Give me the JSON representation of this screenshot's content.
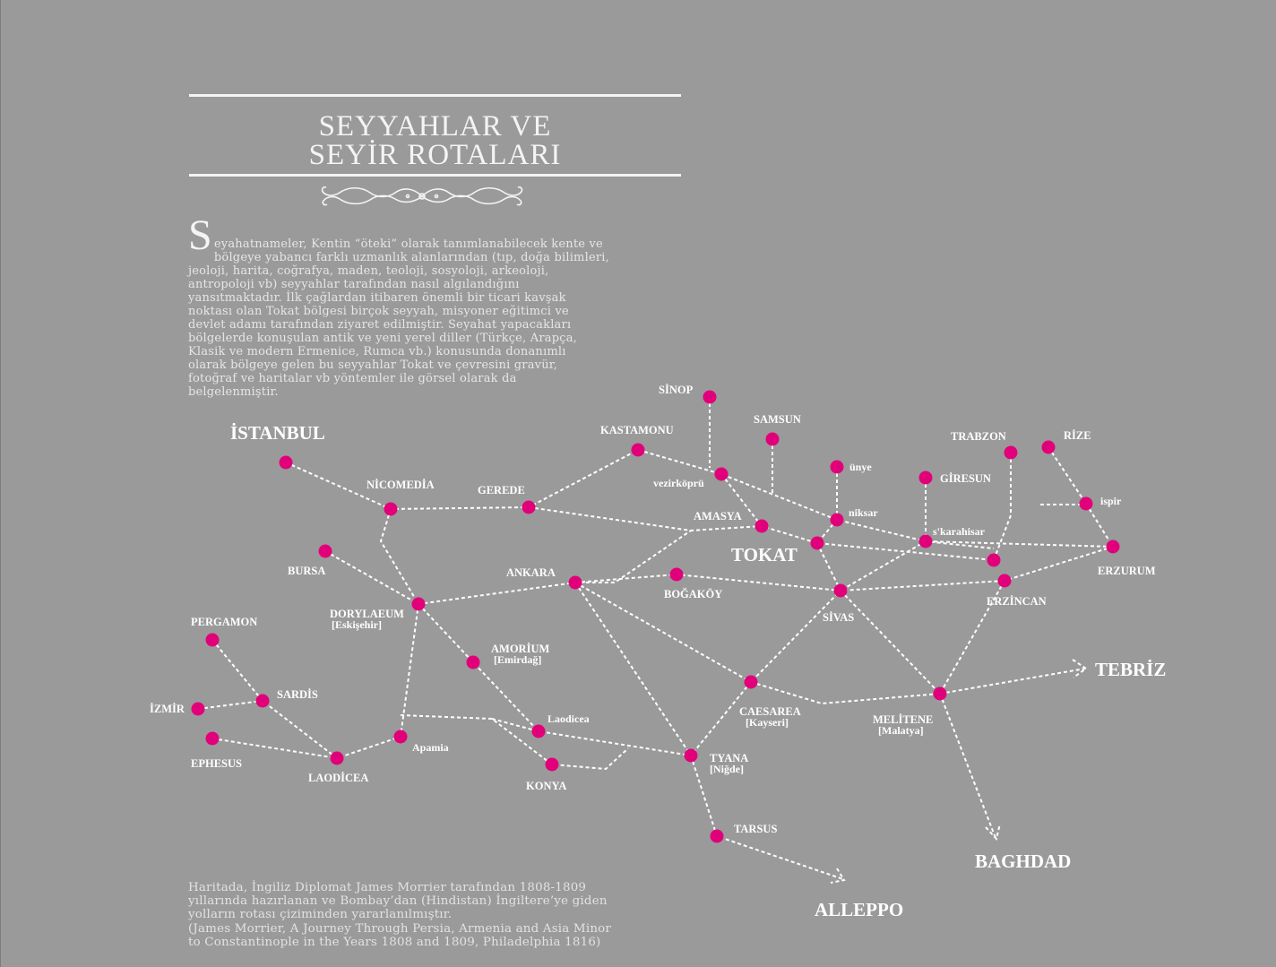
{
  "title": {
    "line1": "SEYYAHLAR VE",
    "line2": "SEYİR ROTALARI"
  },
  "ornament_icon": "scroll-flourish-icon",
  "intro": {
    "dropcap": "S",
    "lines": [
      "eyahatnameler, Kentin “öteki” olarak tanımlanabilecek kente ve",
      "bölgeye yabancı farklı uzmanlık alanlarından (tıp, doğa bilimleri,",
      "jeoloji, harita, coğrafya, maden, teoloji, sosyoloji, arkeoloji,",
      "antropoloji vb) seyyahlar tarafından nasıl algılandığını",
      "yansıtmaktadır. İlk çağlardan itibaren önemli bir ticari kavşak",
      "noktası olan Tokat bölgesi birçok seyyah, misyoner eğitimci ve",
      "devlet adamı tarafından ziyaret edilmiştir. Seyahat yapacakları",
      "bölgelerde konuşulan antik ve yeni yerel diller (Türkçe, Arapça,",
      "Klasik ve modern Ermenice, Rumca vb.) konusunda donanımlı",
      "olarak bölgeye gelen bu seyyahlar Tokat ve çevresini gravür,",
      "fotoğraf ve haritalar vb yöntemler ile görsel olarak da",
      "belgelenmiştir."
    ]
  },
  "footnote": {
    "lines": [
      "Haritada, İngiliz Diplomat James Morrier tarafından 1808-1809",
      "yıllarında hazırlanan ve Bombay’dan (Hindistan) İngiltere’ye giden",
      "yolların rotası çiziminden yararlanılmıştır.",
      "(James Morrier, A Journey Through  Persia, Armenia and Asia Minor",
      "to Constantinople in the Years 1808 and 1809, Philadelphia 1816)"
    ]
  },
  "colors": {
    "background": "#9a9a9a",
    "city_dot": "#e2007a",
    "route": "#ffffff",
    "text": "#ffffff"
  },
  "places": {
    "istanbul": "İSTANBUL",
    "nicomedia": "NİCOMEDİA",
    "gerede": "GEREDE",
    "kastamonu": "KASTAMONU",
    "sinop": "SİNOP",
    "samsun": "SAMSUN",
    "unye": "ünye",
    "giresun": "GİRESUN",
    "trabzon": "TRABZON",
    "rize": "RİZE",
    "ispir": "ispir",
    "vezirkopru": "vezirköprü",
    "amasya": "AMASYA",
    "niksar": "niksar",
    "karahisar": "s'karahisar",
    "tokat": "TOKAT",
    "erzurum": "ERZURUM",
    "erzincan": "ERZİNCAN",
    "bursa": "BURSA",
    "ankara": "ANKARA",
    "bogakoy": "BOĞAKÖY",
    "sivas": "SİVAS",
    "dorylaeum": "DORYLAEUM",
    "dorylaeum_sub": "[Eskişehir]",
    "pergamon": "PERGAMON",
    "amorium": "AMORİUM",
    "amorium_sub": "[Emirdağ]",
    "tebriz": "TEBRİZ",
    "izmir": "İZMİR",
    "sardis": "SARDİS",
    "caesarea": "CAESAREA",
    "caesarea_sub": "[Kayseri]",
    "melitene": "MELİTENE",
    "melitene_sub": "[Malatya]",
    "laodicea_small": "Laodicea",
    "apamia": "Apamia",
    "ephesus": "EPHESUS",
    "laodicea": "LAODİCEA",
    "tyana": "TYANA",
    "tyana_sub": "[Niğde]",
    "konya": "KONYA",
    "tarsus": "TARSUS",
    "baghdad": "BAGHDAD",
    "alleppo": "ALLEPPO"
  }
}
